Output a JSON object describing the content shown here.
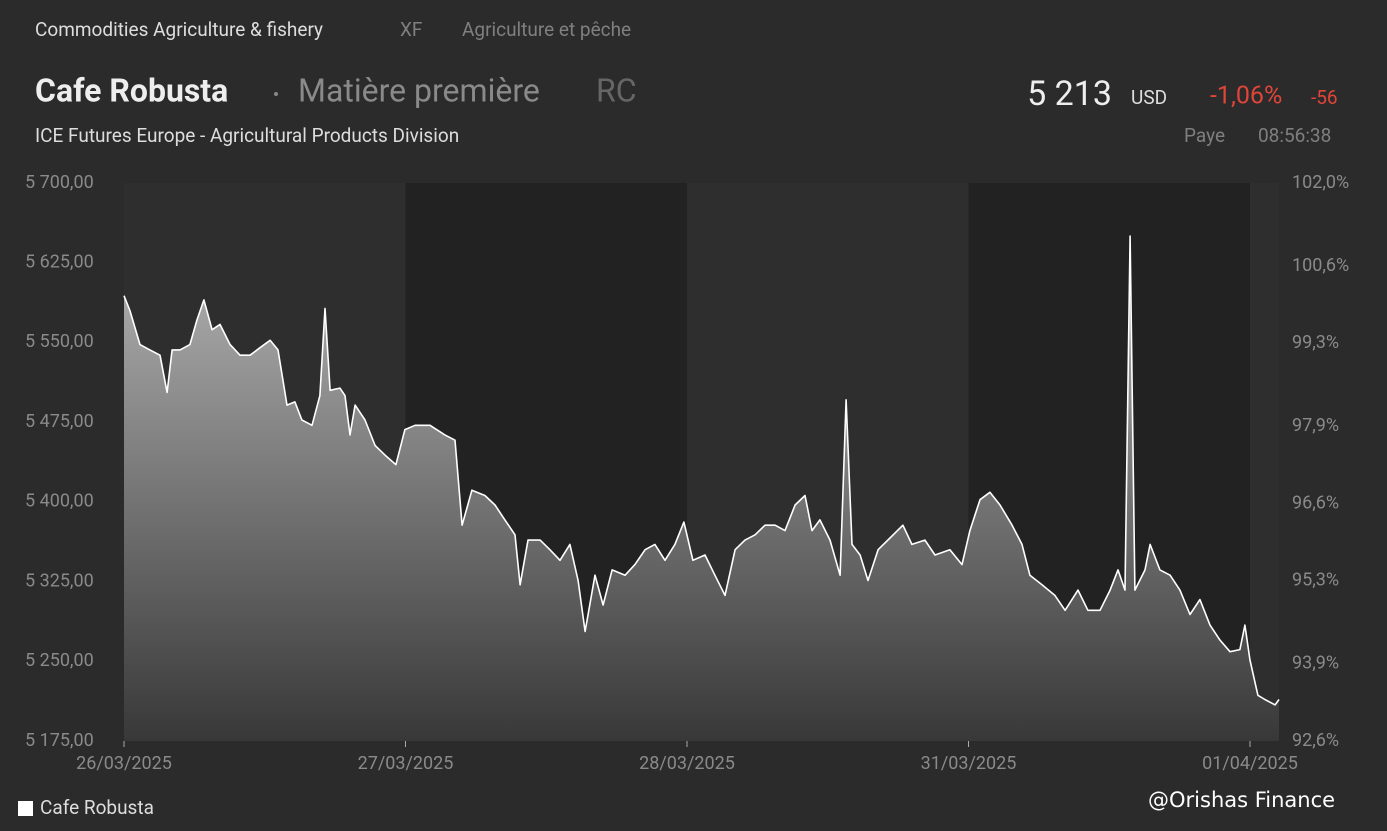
{
  "header": {
    "breadcrumb": "Commodities Agriculture & fishery",
    "code": "XF",
    "category_fr": "Agriculture et pêche",
    "name": "Cafe Robusta",
    "kind": "Matière première",
    "ticker": "RC",
    "price": "5 213",
    "currency": "USD",
    "change_pct": "-1,06%",
    "change": "-56",
    "exchange": "ICE Futures Europe - Agricultural Products Division",
    "country": "Paye",
    "time": "08:56:38"
  },
  "chart_data": {
    "type": "area",
    "x": [
      0,
      0.021,
      0.057,
      0.092,
      0.128,
      0.153,
      0.171,
      0.199,
      0.234,
      0.259,
      0.284,
      0.313,
      0.341,
      0.377,
      0.412,
      0.448,
      0.483,
      0.519,
      0.547,
      0.579,
      0.607,
      0.632,
      0.668,
      0.696,
      0.714,
      0.732,
      0.767,
      0.785,
      0.803,
      0.821,
      0.856,
      0.892,
      0.927,
      0.966,
      0.998,
      1.034,
      1.087,
      1.14,
      1.176,
      1.201,
      1.236,
      1.282,
      1.318,
      1.353,
      1.389,
      1.407,
      1.435,
      1.478,
      1.513,
      1.549,
      1.584,
      1.613,
      1.638,
      1.673,
      1.702,
      1.734,
      1.78,
      1.815,
      1.851,
      1.886,
      1.922,
      1.957,
      1.989,
      2.021,
      2.064,
      2.099,
      2.135,
      2.171,
      2.206,
      2.242,
      2.277,
      2.313,
      2.348,
      2.384,
      2.419,
      2.444,
      2.472,
      2.508,
      2.544,
      2.565,
      2.586,
      2.615,
      2.643,
      2.679,
      2.721,
      2.767,
      2.799,
      2.845,
      2.881,
      2.934,
      2.977,
      3.005,
      3.041,
      3.076,
      3.112,
      3.155,
      3.19,
      3.218,
      3.261,
      3.307,
      3.343,
      3.389,
      3.424,
      3.467,
      3.503,
      3.531,
      3.556,
      3.574,
      3.591,
      3.627,
      3.645,
      3.68,
      3.716,
      3.751,
      3.787,
      3.822,
      3.858,
      3.893,
      3.929,
      3.964,
      3.982,
      4.0,
      4.028,
      4.053,
      4.089,
      4.103
    ],
    "series": [
      {
        "name": "Cafe Robusta",
        "color": "#ffffff",
        "values": [
          5594,
          5580,
          5548,
          5543,
          5538,
          5503,
          5543,
          5543,
          5548,
          5571,
          5590,
          5562,
          5567,
          5548,
          5538,
          5538,
          5545,
          5552,
          5543,
          5491,
          5494,
          5477,
          5472,
          5500,
          5582,
          5505,
          5507,
          5500,
          5463,
          5491,
          5477,
          5453,
          5444,
          5435,
          5468,
          5472,
          5472,
          5463,
          5458,
          5378,
          5411,
          5406,
          5397,
          5383,
          5369,
          5322,
          5364,
          5364,
          5355,
          5345,
          5360,
          5326,
          5278,
          5331,
          5303,
          5336,
          5331,
          5341,
          5355,
          5360,
          5345,
          5360,
          5381,
          5345,
          5350,
          5331,
          5312,
          5355,
          5364,
          5369,
          5378,
          5378,
          5373,
          5397,
          5406,
          5373,
          5383,
          5364,
          5331,
          5496,
          5360,
          5350,
          5326,
          5355,
          5366,
          5378,
          5360,
          5364,
          5350,
          5355,
          5341,
          5373,
          5402,
          5409,
          5397,
          5378,
          5360,
          5331,
          5322,
          5312,
          5298,
          5317,
          5298,
          5298,
          5317,
          5336,
          5317,
          5650,
          5317,
          5336,
          5360,
          5336,
          5331,
          5317,
          5294,
          5308,
          5284,
          5270,
          5259,
          5261,
          5284,
          5251,
          5218,
          5214,
          5209,
          5214
        ]
      }
    ],
    "xlim": [
      0,
      4.103
    ],
    "xticks": [
      {
        "value": 0,
        "label": "26/03/2025"
      },
      {
        "value": 1,
        "label": "27/03/2025"
      },
      {
        "value": 2,
        "label": "28/03/2025"
      },
      {
        "value": 3,
        "label": "31/03/2025"
      },
      {
        "value": 4,
        "label": "01/04/2025"
      }
    ],
    "ylim": [
      5175,
      5700
    ],
    "yticks": [
      {
        "value": 5700,
        "label": "5 700,00"
      },
      {
        "value": 5625,
        "label": "5 625,00"
      },
      {
        "value": 5550,
        "label": "5 550,00"
      },
      {
        "value": 5475,
        "label": "5 475,00"
      },
      {
        "value": 5400,
        "label": "5 400,00"
      },
      {
        "value": 5325,
        "label": "5 325,00"
      },
      {
        "value": 5250,
        "label": "5 250,00"
      },
      {
        "value": 5175,
        "label": "5 175,00"
      }
    ],
    "y2lim": [
      92.6,
      102.0
    ],
    "y2ticks": [
      {
        "value": 102.0,
        "label": "102,0%"
      },
      {
        "value": 100.6,
        "label": "100,6%"
      },
      {
        "value": 99.3,
        "label": "99,3%"
      },
      {
        "value": 97.9,
        "label": "97,9%"
      },
      {
        "value": 96.6,
        "label": "96,6%"
      },
      {
        "value": 95.3,
        "label": "95,3%"
      },
      {
        "value": 93.9,
        "label": "93,9%"
      },
      {
        "value": 92.6,
        "label": "92,6%"
      }
    ]
  },
  "watermark": "@Orishas Finance"
}
